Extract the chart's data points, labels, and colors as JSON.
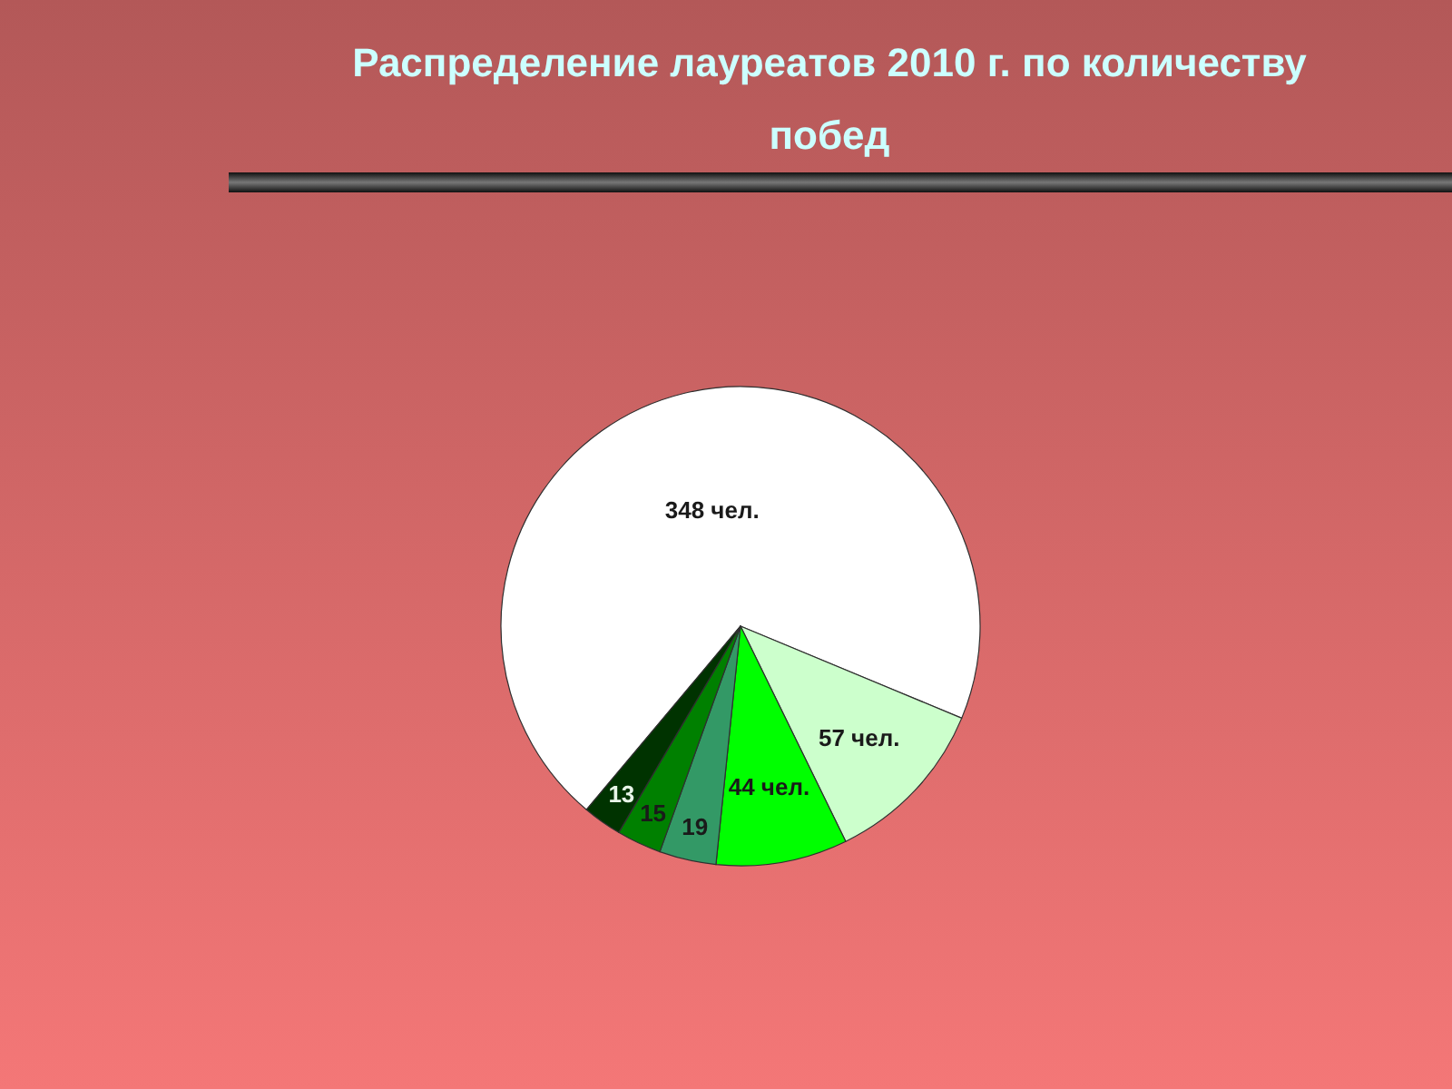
{
  "chart_data": {
    "type": "pie",
    "title": "Распределение лауреатов 2010 г. по количеству побед",
    "categories": [
      null,
      null,
      null,
      null,
      null,
      null
    ],
    "values": [
      348,
      57,
      44,
      19,
      15,
      13
    ],
    "colors": [
      "#ffffff",
      "#ccffcc",
      "#00ff00",
      "#339966",
      "#008000",
      "#003300"
    ],
    "value_labels": [
      "348 чел.",
      "57 чел.",
      "44 чел.",
      "19",
      "15",
      "13"
    ]
  }
}
